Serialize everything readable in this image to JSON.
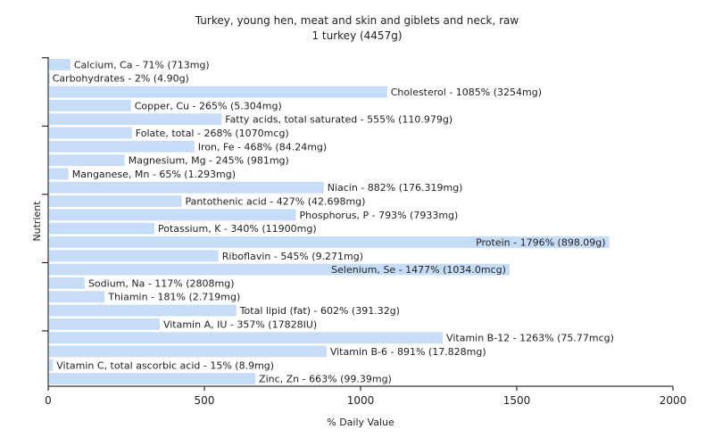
{
  "chart_data": {
    "type": "bar",
    "orientation": "horizontal",
    "title": "Turkey, young hen, meat and skin and giblets and neck, raw",
    "subtitle": "1 turkey (4457g)",
    "xlabel": "% Daily Value",
    "ylabel": "Nutrient",
    "xlim": [
      0,
      2000
    ],
    "xticks": [
      0,
      500,
      1000,
      1500,
      2000
    ],
    "bar_color": "#c6dcf7",
    "grid": false,
    "categories": [
      "Calcium, Ca",
      "Carbohydrates",
      "Cholesterol",
      "Copper, Cu",
      "Fatty acids, total saturated",
      "Folate, total",
      "Iron, Fe",
      "Magnesium, Mg",
      "Manganese, Mn",
      "Niacin",
      "Pantothenic acid",
      "Phosphorus, P",
      "Potassium, K",
      "Protein",
      "Riboflavin",
      "Selenium, Se",
      "Sodium, Na",
      "Thiamin",
      "Total lipid (fat)",
      "Vitamin A, IU",
      "Vitamin B-12",
      "Vitamin B-6",
      "Vitamin C, total ascorbic acid",
      "Zinc, Zn"
    ],
    "values": [
      71,
      2,
      1085,
      265,
      555,
      268,
      468,
      245,
      65,
      882,
      427,
      793,
      340,
      1796,
      545,
      1477,
      117,
      181,
      602,
      357,
      1263,
      891,
      15,
      663
    ],
    "labels": [
      "Calcium, Ca - 71% (713mg)",
      "Carbohydrates - 2% (4.90g)",
      "Cholesterol - 1085% (3254mg)",
      "Copper, Cu - 265% (5.304mg)",
      "Fatty acids, total saturated - 555% (110.979g)",
      "Folate, total - 268% (1070mcg)",
      "Iron, Fe - 468% (84.24mg)",
      "Magnesium, Mg - 245% (981mg)",
      "Manganese, Mn - 65% (1.293mg)",
      "Niacin - 882% (176.319mg)",
      "Pantothenic acid - 427% (42.698mg)",
      "Phosphorus, P - 793% (7933mg)",
      "Potassium, K - 340% (11900mg)",
      "Protein - 1796% (898.09g)",
      "Riboflavin - 545% (9.271mg)",
      "Selenium, Se - 1477% (1034.0mcg)",
      "Sodium, Na - 117% (2808mg)",
      "Thiamin - 181% (2.719mg)",
      "Total lipid (fat) - 602% (391.32g)",
      "Vitamin A, IU - 357% (17828IU)",
      "Vitamin B-12 - 1263% (75.77mcg)",
      "Vitamin B-6 - 891% (17.828mg)",
      "Vitamin C, total ascorbic acid - 15% (8.9mg)",
      "Zinc, Zn - 663% (99.39mg)"
    ]
  }
}
